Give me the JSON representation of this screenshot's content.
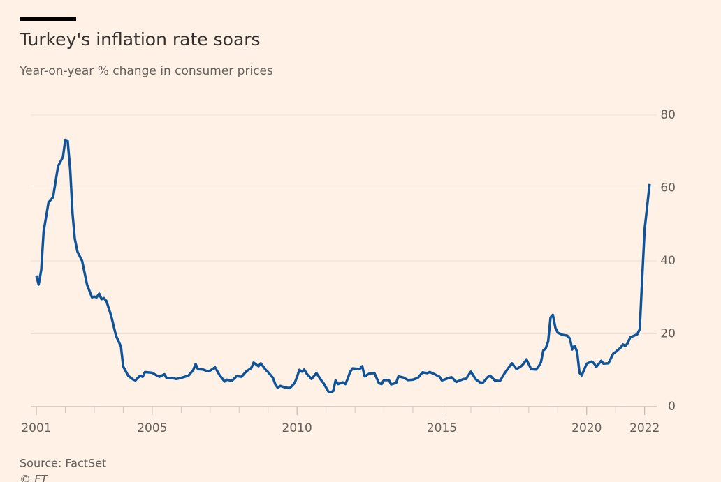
{
  "chart_data": {
    "type": "line",
    "title": "Turkey's inflation rate soars",
    "subtitle": "Year-on-year % change in consumer prices",
    "source": "Source: FactSet",
    "credit": "© FT",
    "x": [
      2001.0,
      2001.08,
      2001.17,
      2001.25,
      2001.42,
      2001.58,
      2001.75,
      2001.92,
      2002.0,
      2002.08,
      2002.17,
      2002.25,
      2002.33,
      2002.42,
      2002.58,
      2002.75,
      2002.92,
      2003.0,
      2003.08,
      2003.17,
      2003.25,
      2003.33,
      2003.42,
      2003.58,
      2003.75,
      2003.92,
      2004.0,
      2004.17,
      2004.33,
      2004.42,
      2004.58,
      2004.67,
      2004.75,
      2005.0,
      2005.17,
      2005.25,
      2005.42,
      2005.5,
      2005.67,
      2005.83,
      2006.0,
      2006.25,
      2006.42,
      2006.5,
      2006.58,
      2006.75,
      2006.92,
      2007.0,
      2007.17,
      2007.33,
      2007.5,
      2007.58,
      2007.75,
      2007.92,
      2008.08,
      2008.25,
      2008.42,
      2008.5,
      2008.67,
      2008.75,
      2008.92,
      2009.0,
      2009.17,
      2009.25,
      2009.33,
      2009.42,
      2009.58,
      2009.75,
      2009.92,
      2010.0,
      2010.08,
      2010.17,
      2010.25,
      2010.33,
      2010.5,
      2010.67,
      2010.83,
      2010.92,
      2011.08,
      2011.17,
      2011.25,
      2011.33,
      2011.42,
      2011.58,
      2011.67,
      2011.75,
      2011.83,
      2011.92,
      2012.08,
      2012.17,
      2012.25,
      2012.33,
      2012.5,
      2012.67,
      2012.75,
      2012.83,
      2012.92,
      2013.0,
      2013.17,
      2013.25,
      2013.42,
      2013.5,
      2013.67,
      2013.83,
      2014.0,
      2014.17,
      2014.33,
      2014.5,
      2014.58,
      2014.75,
      2014.92,
      2015.0,
      2015.25,
      2015.33,
      2015.5,
      2015.75,
      2015.83,
      2016.0,
      2016.17,
      2016.33,
      2016.42,
      2016.58,
      2016.67,
      2016.83,
      2017.0,
      2017.17,
      2017.33,
      2017.42,
      2017.58,
      2017.75,
      2017.83,
      2017.92,
      2018.08,
      2018.25,
      2018.33,
      2018.42,
      2018.5,
      2018.58,
      2018.67,
      2018.75,
      2018.83,
      2018.92,
      2019.0,
      2019.17,
      2019.33,
      2019.42,
      2019.5,
      2019.58,
      2019.67,
      2019.75,
      2019.83,
      2020.0,
      2020.17,
      2020.25,
      2020.33,
      2020.5,
      2020.58,
      2020.75,
      2020.92,
      2021.0,
      2021.17,
      2021.25,
      2021.33,
      2021.42,
      2021.5,
      2021.58,
      2021.67,
      2021.75,
      2021.83,
      2021.92,
      2022.0,
      2022.08,
      2022.17
    ],
    "series": [
      {
        "color": "#0f5499",
        "values": [
          36,
          33.5,
          37.5,
          48,
          56,
          57.5,
          66,
          68.5,
          73.2,
          73,
          65,
          53,
          46,
          42.5,
          40,
          33.5,
          30,
          30.2,
          30,
          31,
          29.5,
          29.8,
          29,
          25,
          19.5,
          16.5,
          11,
          8.5,
          7.5,
          7.2,
          8.5,
          8.2,
          9.5,
          9.3,
          8.5,
          8.2,
          8.9,
          7.8,
          7.9,
          7.6,
          7.9,
          8.5,
          10.1,
          11.7,
          10.3,
          10.2,
          9.7,
          9.9,
          10.8,
          8.6,
          6.9,
          7.4,
          7.1,
          8.4,
          8.2,
          9.7,
          10.6,
          12.1,
          11.1,
          11.9,
          10.1,
          9.5,
          7.9,
          6.1,
          5.2,
          5.7,
          5.3,
          5.1,
          6.5,
          8.2,
          10.1,
          9.6,
          10.2,
          9.1,
          7.6,
          9.2,
          7.3,
          6.4,
          4.2,
          4.0,
          4.3,
          7.2,
          6.2,
          6.7,
          6.2,
          7.7,
          9.5,
          10.5,
          10.4,
          10.4,
          11.1,
          8.3,
          9.1,
          9.2,
          7.8,
          6.4,
          6.2,
          7.3,
          7.3,
          6.1,
          6.5,
          8.3,
          8.0,
          7.3,
          7.4,
          7.9,
          9.4,
          9.2,
          9.5,
          8.9,
          8.2,
          7.2,
          7.9,
          8.1,
          6.8,
          7.6,
          7.6,
          9.6,
          7.5,
          6.6,
          6.6,
          8.1,
          8.5,
          7.2,
          7.0,
          9.2,
          11.0,
          11.9,
          10.3,
          11.2,
          11.9,
          13.0,
          10.3,
          10.2,
          10.9,
          12.2,
          15.4,
          15.9,
          17.9,
          24.5,
          25.2,
          21.6,
          20.3,
          19.7,
          19.5,
          18.7,
          15.7,
          16.7,
          15.0,
          9.3,
          8.6,
          11.8,
          12.4,
          11.9,
          10.9,
          12.6,
          11.8,
          11.9,
          14.6,
          15.0,
          16.2,
          17.1,
          16.6,
          17.5,
          19.0,
          19.3,
          19.6,
          19.9,
          21.3,
          36.1,
          48.7,
          54.4,
          61.1
        ]
      }
    ],
    "xlim": [
      2001,
      2022.2
    ],
    "xticks": [
      2001,
      2005,
      2010,
      2015,
      2020,
      2022
    ],
    "x_minor_ticks": [
      2002,
      2003,
      2004,
      2006,
      2007,
      2008,
      2009,
      2011,
      2012,
      2013,
      2014,
      2016,
      2017,
      2018,
      2019,
      2021
    ],
    "ylim": [
      0,
      80
    ],
    "yticks": [
      0,
      20,
      40,
      60,
      80
    ],
    "grid": true
  }
}
